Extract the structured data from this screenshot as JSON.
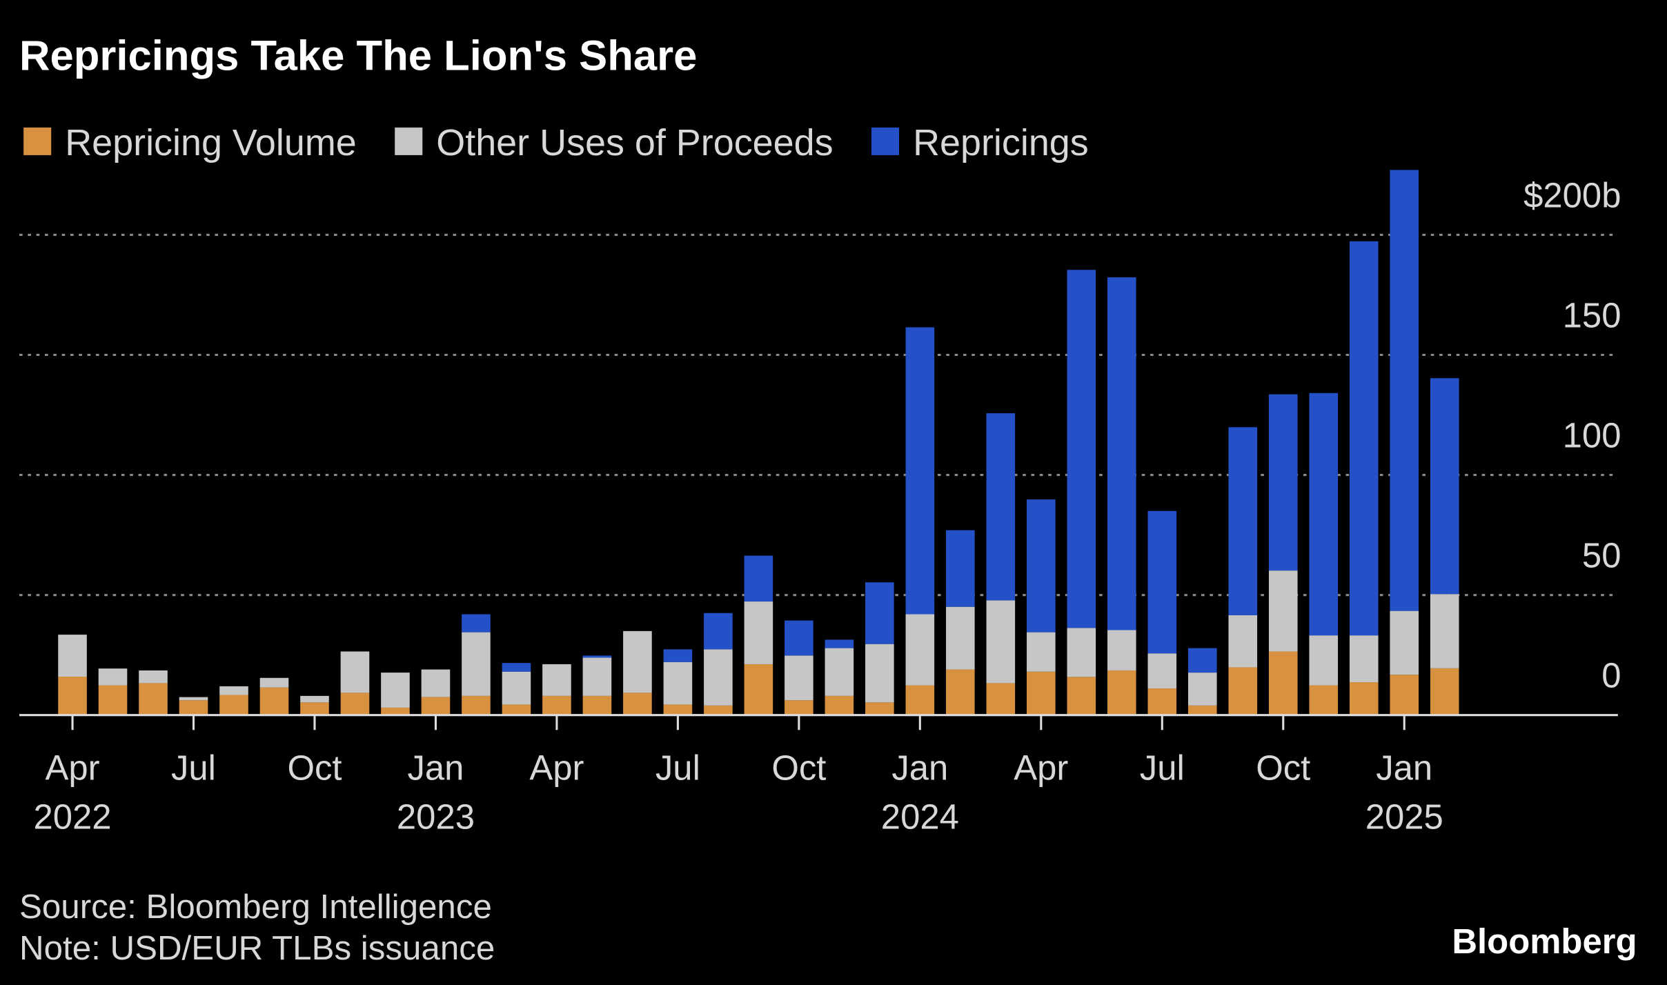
{
  "chart_data": {
    "type": "bar",
    "stacked": true,
    "title": "Repricings Take The Lion's Share",
    "source": "Source: Bloomberg Intelligence",
    "note": "Note: USD/EUR TLBs issuance",
    "brand": "Bloomberg",
    "categories": [
      "Apr 2022",
      null,
      null,
      "Jul",
      null,
      null,
      "Oct",
      null,
      null,
      "Jan 2023",
      null,
      null,
      "Apr",
      null,
      null,
      "Jul",
      null,
      null,
      "Oct",
      null,
      null,
      "Jan 2024",
      null,
      null,
      "Apr",
      null,
      null,
      "Jul",
      null,
      null,
      "Oct",
      null,
      null,
      "Jan 2025",
      null
    ],
    "series": [
      {
        "name": "Repricing Volume",
        "color": "#d8913f",
        "values": [
          16,
          12.4,
          13.3,
          6.2,
          8.4,
          11.5,
          5.3,
          9.3,
          3.1,
          7.5,
          8,
          4.4,
          8,
          8,
          9.3,
          4.4,
          4,
          21.2,
          6.2,
          8,
          5.3,
          12.4,
          19,
          13.3,
          18.1,
          15.9,
          18.6,
          11.1,
          4,
          19.9,
          26.5,
          12.4,
          13.7,
          16.8,
          19.5
        ]
      },
      {
        "name": "Other Uses of Proceeds",
        "color": "#c6c6c6",
        "values": [
          17.5,
          7,
          5.3,
          1.3,
          3.6,
          4,
          2.7,
          17.2,
          14.6,
          11.5,
          26.5,
          13.7,
          13.2,
          15.9,
          25.7,
          17.7,
          23.4,
          26.1,
          18.6,
          19.9,
          24.3,
          29.6,
          26.1,
          34.5,
          16.4,
          20.4,
          16.8,
          14.6,
          13.7,
          21.7,
          33.7,
          20.8,
          19.5,
          26.6,
          30.9
        ]
      },
      {
        "name": "Repricings",
        "color": "#2451c7",
        "values": [
          0,
          0,
          0,
          0,
          0,
          0,
          0,
          0,
          0,
          0,
          7.5,
          3.6,
          0,
          0.9,
          0,
          5.3,
          15.1,
          19.1,
          14.6,
          3.5,
          25.7,
          119.5,
          31.9,
          77.9,
          55.3,
          149.1,
          146.9,
          59.3,
          10.2,
          78.3,
          73.4,
          100.9,
          164.1,
          183.6,
          89.9
        ]
      }
    ],
    "ylim": [
      0,
      226
    ],
    "yticks": [
      0,
      50,
      100,
      150,
      {
        "value": 200,
        "label": "$200b"
      }
    ],
    "grid": true
  }
}
